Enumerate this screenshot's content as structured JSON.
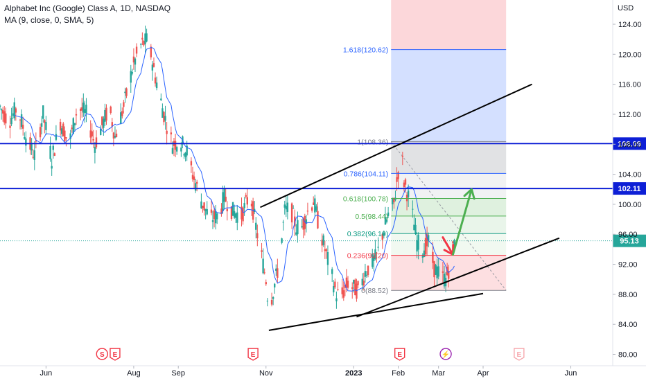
{
  "header": {
    "title": "Alphabet Inc (Google) Class A, 1D, NASDAQ",
    "indicator": "MA (9, close, 0, SMA, 5)"
  },
  "price_axis": {
    "currency": "USD",
    "ticks": [
      "124.00",
      "120.00",
      "116.00",
      "112.00",
      "108.00",
      "104.00",
      "100.00",
      "96.00",
      "92.00",
      "88.00",
      "84.00",
      "80.00"
    ]
  },
  "time_axis": {
    "labels": [
      {
        "text": "Jun",
        "day": 32
      },
      {
        "text": "Aug",
        "day": 93
      },
      {
        "text": "Sep",
        "day": 124
      },
      {
        "text": "Nov",
        "day": 185
      },
      {
        "text": "2023",
        "day": 246
      },
      {
        "text": "Feb",
        "day": 277
      },
      {
        "text": "Mar",
        "day": 305
      },
      {
        "text": "Apr",
        "day": 336
      },
      {
        "text": "Jun",
        "day": 397
      }
    ]
  },
  "colors": {
    "up": "#26a69a",
    "down": "#ef5350",
    "ma": "#2962ff",
    "level_line": "#0d1fd6",
    "current_price": "#26a69a",
    "trend_line": "#000000",
    "arrow_up": "#4caf50",
    "arrow_down": "#f23645",
    "event_badge": "#f23645"
  },
  "chart_data": {
    "type": "candlestick",
    "title": "Alphabet Inc (Google) Class A, 1D, NASDAQ",
    "x_unit": "calendar days since 2022-05-01",
    "ylim": [
      79,
      125.5
    ],
    "horizontal_levels": [
      {
        "label": "108.09",
        "value": 108.09
      },
      {
        "label": "102.11",
        "value": 102.11
      }
    ],
    "current_price": {
      "label": "95.13",
      "value": 95.13
    },
    "fibonacci": {
      "start_day": 272,
      "end_day": 352,
      "levels": [
        {
          "ratio": 1.618,
          "label": "1.618(120.62)",
          "value": 120.62
        },
        {
          "ratio": 1,
          "label": "1(108.36)",
          "value": 108.36
        },
        {
          "ratio": 0.786,
          "label": "0.786(104.11)",
          "value": 104.11
        },
        {
          "ratio": 0.618,
          "label": "0.618(100.78)",
          "value": 100.78
        },
        {
          "ratio": 0.5,
          "label": "0.5(98.44)",
          "value": 98.44
        },
        {
          "ratio": 0.382,
          "label": "0.382(96.10)",
          "value": 96.1
        },
        {
          "ratio": 0.236,
          "label": "0.236(93.20)",
          "value": 93.2
        },
        {
          "ratio": 0,
          "label": "0(88.52)",
          "value": 88.52
        }
      ]
    },
    "trend_lines": [
      {
        "name": "channel-upper",
        "from": {
          "day": 181,
          "price": 99.6
        },
        "to": {
          "day": 370,
          "price": 116.0
        }
      },
      {
        "name": "channel-lower",
        "from": {
          "day": 248,
          "price": 85.0
        },
        "to": {
          "day": 389,
          "price": 95.5
        }
      },
      {
        "name": "base-line",
        "from": {
          "day": 187,
          "price": 83.2
        },
        "to": {
          "day": 336,
          "price": 88.1
        }
      }
    ],
    "arrows": [
      {
        "name": "red-drop",
        "from": {
          "day": 308,
          "price": 95.6
        },
        "to": {
          "day": 315,
          "price": 93.3
        }
      },
      {
        "name": "green-rise",
        "from": {
          "day": 315,
          "price": 93.3
        },
        "to": {
          "day": 328,
          "price": 102.0
        }
      }
    ],
    "events": [
      {
        "label": "S",
        "day": 71
      },
      {
        "label": "E",
        "day": 80
      },
      {
        "label": "E",
        "day": 176
      },
      {
        "label": "E",
        "day": 278
      },
      {
        "label": "⚡",
        "day": 310
      },
      {
        "label": "E",
        "day": 361
      }
    ],
    "series": [
      {
        "name": "price",
        "anchors": [
          [
            0,
            113
          ],
          [
            6,
            111
          ],
          [
            12,
            113
          ],
          [
            18,
            109
          ],
          [
            24,
            106.5
          ],
          [
            30,
            112
          ],
          [
            36,
            106
          ],
          [
            42,
            111
          ],
          [
            48,
            108
          ],
          [
            54,
            113
          ],
          [
            60,
            112
          ],
          [
            66,
            108
          ],
          [
            72,
            111
          ],
          [
            76,
            113
          ],
          [
            80,
            109
          ],
          [
            86,
            113
          ],
          [
            92,
            118
          ],
          [
            97,
            121
          ],
          [
            103,
            122
          ],
          [
            108,
            117
          ],
          [
            114,
            112
          ],
          [
            120,
            108
          ],
          [
            125,
            108.5
          ],
          [
            130,
            107
          ],
          [
            134,
            104
          ],
          [
            140,
            100.5
          ],
          [
            146,
            98
          ],
          [
            152,
            98.5
          ],
          [
            156,
            101
          ],
          [
            162,
            99
          ],
          [
            168,
            98.5
          ],
          [
            174,
            101.5
          ],
          [
            178,
            97
          ],
          [
            182,
            93
          ],
          [
            185,
            90
          ],
          [
            187,
            86
          ],
          [
            190,
            88.5
          ],
          [
            194,
            92
          ],
          [
            198,
            99
          ],
          [
            202,
            99.5
          ],
          [
            206,
            97
          ],
          [
            210,
            97
          ],
          [
            214,
            99
          ],
          [
            218,
            100.5
          ],
          [
            222,
            97
          ],
          [
            226,
            94
          ],
          [
            230,
            91
          ],
          [
            234,
            88
          ],
          [
            238,
            88
          ],
          [
            242,
            89.5
          ],
          [
            246,
            88.8
          ],
          [
            250,
            88.5
          ],
          [
            254,
            91
          ],
          [
            258,
            92
          ],
          [
            262,
            93
          ],
          [
            266,
            96
          ],
          [
            270,
            98.5
          ],
          [
            274,
            100
          ],
          [
            277,
            104.5
          ],
          [
            279,
            108
          ],
          [
            281,
            103
          ],
          [
            284,
            101
          ],
          [
            286,
            99.5
          ],
          [
            290,
            95
          ],
          [
            294,
            94
          ],
          [
            298,
            95
          ],
          [
            302,
            91.5
          ],
          [
            306,
            90.5
          ],
          [
            310,
            90
          ],
          [
            313,
            92
          ],
          [
            316,
            95
          ]
        ]
      }
    ]
  }
}
